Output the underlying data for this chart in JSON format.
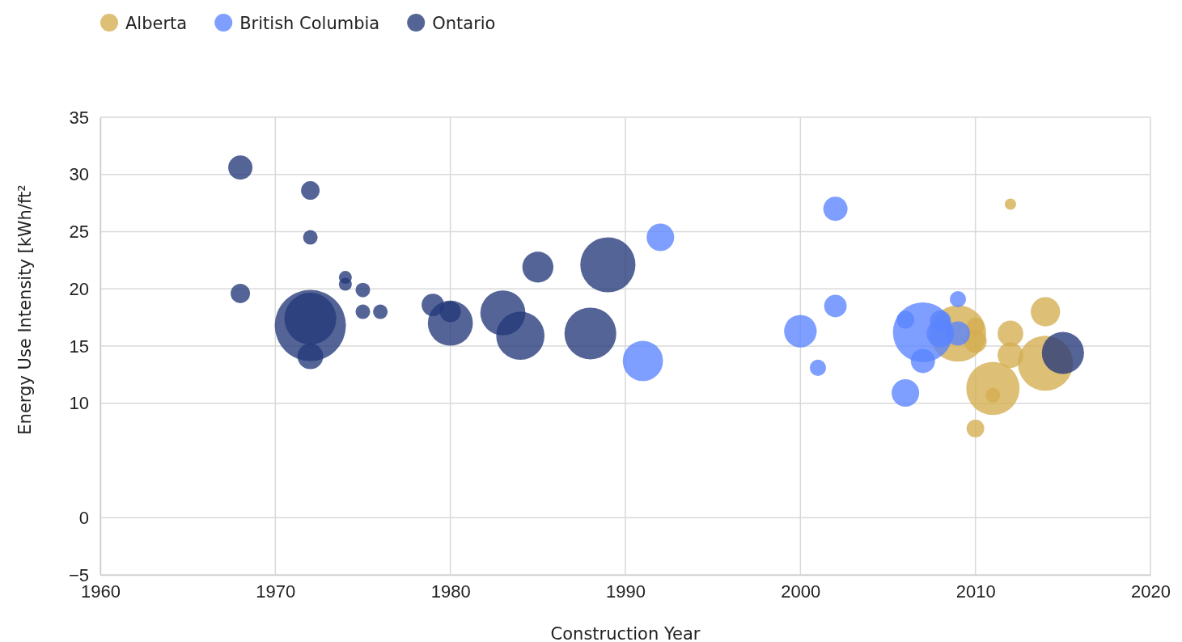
{
  "chart_data": {
    "type": "bubble",
    "xlabel": "Construction Year",
    "ylabel": "Energy Use Intensity [kWh/ft²",
    "xlim": [
      1960,
      2020
    ],
    "xticks": [
      1960,
      1970,
      1980,
      1990,
      2000,
      2010,
      2020
    ],
    "ylim": [
      -5,
      35
    ],
    "yticks": [
      {
        "value": -5,
        "label": "−5"
      },
      0,
      10,
      15,
      20,
      25,
      30,
      35
    ],
    "grid": true,
    "legend": "top left",
    "series": [
      {
        "name": "Alberta",
        "color": "#d4ad4f",
        "x": [
          2009,
          2010,
          2010,
          2010,
          2012,
          2012,
          2012,
          2014,
          2014,
          2011,
          2011
        ],
        "values": [
          16.1,
          16.7,
          15.4,
          7.8,
          27.4,
          16.1,
          14.2,
          18.0,
          13.5,
          11.3,
          10.7
        ],
        "sizes": [
          0.63,
          0.062,
          0.1,
          0.062,
          0.025,
          0.13,
          0.13,
          0.17,
          0.6,
          0.56,
          0.042
        ]
      },
      {
        "name": "British Columbia",
        "color": "#5a84ff",
        "x": [
          1992,
          1991,
          2002,
          2002,
          2000,
          2001,
          2006,
          2006,
          2007,
          2007,
          2008,
          2008,
          2009,
          2009
        ],
        "values": [
          24.5,
          13.7,
          27.0,
          18.5,
          16.3,
          13.1,
          10.9,
          17.3,
          16.2,
          13.7,
          17.2,
          16.1,
          19.1,
          16.1
        ],
        "sizes": [
          0.15,
          0.32,
          0.116,
          0.1,
          0.21,
          0.052,
          0.15,
          0.062,
          0.71,
          0.116,
          0.087,
          0.15,
          0.052,
          0.116
        ]
      },
      {
        "name": "Ontario",
        "color": "#24397a",
        "x": [
          1968,
          1972,
          1972,
          1974,
          1974,
          1975,
          1975,
          1976,
          1968,
          1972,
          1972,
          1972,
          1979,
          1980,
          1980,
          1983,
          1984,
          1985,
          1988,
          1989,
          2015
        ],
        "values": [
          30.6,
          28.6,
          24.5,
          21.0,
          20.4,
          19.9,
          18.0,
          18.0,
          19.6,
          16.8,
          17.4,
          14.1,
          18.6,
          18.0,
          17.0,
          17.9,
          15.9,
          21.9,
          16.1,
          22.1,
          14.4
        ],
        "sizes": [
          0.116,
          0.068,
          0.042,
          0.033,
          0.033,
          0.042,
          0.042,
          0.042,
          0.074,
          1,
          0.53,
          0.13,
          0.1,
          0.087,
          0.4,
          0.4,
          0.46,
          0.19,
          0.53,
          0.6,
          0.35
        ]
      }
    ]
  }
}
